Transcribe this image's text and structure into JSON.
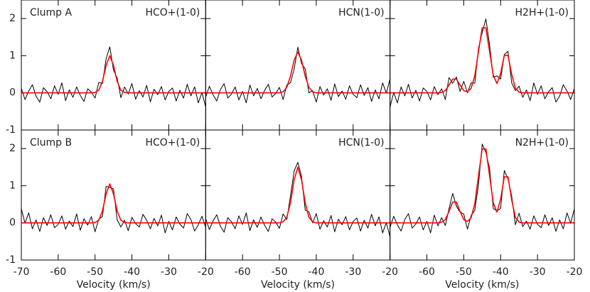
{
  "chart_data": [
    {
      "type": "line",
      "title": "Clump A",
      "title_color": "#ff3333",
      "line_label": "HCO+(1-0)",
      "x": [
        -70,
        -69,
        -68,
        -67,
        -66,
        -65,
        -64,
        -63,
        -62,
        -61,
        -60,
        -59,
        -58,
        -57,
        -56,
        -55,
        -54,
        -53,
        -52,
        -51,
        -50,
        -49,
        -48,
        -47,
        -46,
        -45,
        -44,
        -43,
        -42,
        -41,
        -40,
        -39,
        -38,
        -37,
        -36,
        -35,
        -34,
        -33,
        -32,
        -31,
        -30,
        -29,
        -28,
        -27,
        -26,
        -25,
        -24,
        -23,
        -22,
        -21,
        -20
      ],
      "series": [
        {
          "color": "#000000",
          "values": [
            0.12,
            -0.18,
            0.05,
            0.22,
            -0.09,
            -0.25,
            0.14,
            0.03,
            -0.16,
            0.19,
            -0.04,
            0.27,
            -0.21,
            0.08,
            -0.12,
            0.16,
            -0.07,
            -0.23,
            0.11,
            0.02,
            -0.14,
            0.28,
            0.25,
            0.92,
            1.24,
            0.61,
            0.4,
            -0.13,
            0.16,
            -0.03,
            0.25,
            -0.17,
            0.06,
            -0.11,
            0.2,
            -0.24,
            0.1,
            -0.05,
            0.17,
            -0.19,
            0.04,
            0.13,
            -0.22,
            0.07,
            -0.14,
            0.23,
            -0.08,
            0.16,
            -0.27,
            0.01,
            -0.38
          ]
        },
        {
          "color": "#ff0000",
          "values": [
            0,
            0,
            0,
            0,
            0,
            0,
            0,
            0,
            0,
            0,
            0,
            0,
            0,
            0,
            0,
            0,
            0,
            0,
            0,
            0,
            0.01,
            0.07,
            0.31,
            0.74,
            1.0,
            0.74,
            0.31,
            0.07,
            0.01,
            0,
            0,
            0,
            0,
            0,
            0,
            0,
            0,
            0,
            0,
            0,
            0,
            0,
            0,
            0,
            0,
            0,
            0,
            0,
            0,
            0,
            0
          ]
        }
      ],
      "xlim": [
        -70,
        -20
      ],
      "ylim": [
        -1,
        2.5
      ],
      "yticks": [
        -1,
        0,
        1,
        2
      ]
    },
    {
      "type": "line",
      "line_label": "HCN(1-0)",
      "x": [
        -70,
        -69,
        -68,
        -67,
        -66,
        -65,
        -64,
        -63,
        -62,
        -61,
        -60,
        -59,
        -58,
        -57,
        -56,
        -55,
        -54,
        -53,
        -52,
        -51,
        -50,
        -49,
        -48,
        -47,
        -46,
        -45,
        -44,
        -43,
        -42,
        -41,
        -40,
        -39,
        -38,
        -37,
        -36,
        -35,
        -34,
        -33,
        -32,
        -31,
        -30,
        -29,
        -28,
        -27,
        -26,
        -25,
        -24,
        -23,
        -22,
        -21,
        -20
      ],
      "series": [
        {
          "color": "#000000",
          "values": [
            -0.12,
            0.18,
            -0.05,
            -0.22,
            0.09,
            0.25,
            -0.14,
            -0.03,
            0.16,
            -0.19,
            0.04,
            -0.27,
            0.21,
            -0.08,
            0.12,
            -0.16,
            0.07,
            0.23,
            -0.11,
            -0.02,
            0.15,
            -0.18,
            0.21,
            0.27,
            0.64,
            1.23,
            0.79,
            0.65,
            0,
            0.06,
            -0.25,
            0.17,
            -0.06,
            0.11,
            -0.2,
            0.24,
            -0.1,
            0.05,
            -0.17,
            0.19,
            -0.04,
            -0.13,
            0.22,
            -0.07,
            0.14,
            -0.23,
            0.08,
            -0.16,
            0.27,
            -0.01,
            0.38
          ]
        },
        {
          "color": "#ff0000",
          "values": [
            0,
            0,
            0,
            0,
            0,
            0,
            0,
            0,
            0,
            0,
            0,
            0,
            0,
            0,
            0,
            0,
            0,
            0,
            0,
            0,
            0,
            0.03,
            0.15,
            0.45,
            0.88,
            1.1,
            0.88,
            0.45,
            0.15,
            0.03,
            0,
            0,
            0,
            0,
            0,
            0,
            0,
            0,
            0,
            0,
            0,
            0,
            0,
            0,
            0,
            0,
            0,
            0,
            0,
            0,
            0
          ]
        }
      ],
      "xlim": [
        -70,
        -20
      ],
      "ylim": [
        -1,
        2.5
      ]
    },
    {
      "type": "line",
      "line_label": "H2H+(1-0)",
      "x": [
        -70,
        -69,
        -68,
        -67,
        -66,
        -65,
        -64,
        -63,
        -62,
        -61,
        -60,
        -59,
        -58,
        -57,
        -56,
        -55,
        -54,
        -53,
        -52,
        -51,
        -50,
        -49,
        -48,
        -47,
        -46,
        -45,
        -44,
        -43,
        -42,
        -41,
        -40,
        -39,
        -38,
        -37,
        -36,
        -35,
        -34,
        -33,
        -32,
        -31,
        -30,
        -29,
        -28,
        -27,
        -26,
        -25,
        -24,
        -23,
        -22,
        -21,
        -20
      ],
      "series": [
        {
          "color": "#000000",
          "values": [
            -0.38,
            0.01,
            -0.27,
            0.16,
            -0.08,
            0.23,
            -0.14,
            0.07,
            -0.22,
            0.13,
            0.04,
            -0.19,
            0.17,
            -0.05,
            0.11,
            -0.18,
            0.41,
            0.26,
            0.43,
            0.04,
            0.31,
            0,
            0.27,
            0.26,
            1.21,
            1.62,
            1.99,
            1.3,
            0.42,
            0.46,
            0.37,
            1.03,
            1.12,
            0.27,
            0.06,
            0.18,
            -0.12,
            0.08,
            -0.21,
            0.27,
            -0.04,
            0.19,
            -0.16,
            0.03,
            0.14,
            -0.25,
            -0.09,
            0.22,
            0.05,
            -0.18,
            0.12
          ]
        },
        {
          "color": "#ff0000",
          "values": [
            0,
            0,
            0,
            0,
            0,
            0,
            0,
            0,
            0,
            0,
            0,
            0,
            0,
            0,
            0.01,
            0.06,
            0.21,
            0.37,
            0.37,
            0.21,
            0.06,
            0.03,
            0.12,
            0.46,
            1.12,
            1.75,
            1.75,
            1.12,
            0.48,
            0.25,
            0.52,
            1.01,
            1.01,
            0.5,
            0.13,
            0.02,
            0,
            0,
            0,
            0,
            0,
            0,
            0,
            0,
            0,
            0,
            0,
            0,
            0,
            0,
            0
          ]
        }
      ],
      "xlim": [
        -70,
        -20
      ],
      "ylim": [
        -1,
        2.5
      ]
    },
    {
      "type": "line",
      "title": "Clump B",
      "title_color": "#ff3333",
      "line_label": "HCO+(1-0)",
      "x": [
        -70,
        -69,
        -68,
        -67,
        -66,
        -65,
        -64,
        -63,
        -62,
        -61,
        -60,
        -59,
        -58,
        -57,
        -56,
        -55,
        -54,
        -53,
        -52,
        -51,
        -50,
        -49,
        -48,
        -47,
        -46,
        -45,
        -44,
        -43,
        -42,
        -41,
        -40,
        -39,
        -38,
        -37,
        -36,
        -35,
        -34,
        -33,
        -32,
        -31,
        -30,
        -29,
        -28,
        -27,
        -26,
        -25,
        -24,
        -23,
        -22,
        -21,
        -20
      ],
      "series": [
        {
          "color": "#000000",
          "values": [
            0.38,
            -0.01,
            0.27,
            -0.16,
            0.08,
            -0.23,
            0.14,
            -0.07,
            0.22,
            -0.13,
            -0.04,
            0.19,
            -0.17,
            0.05,
            -0.1,
            0.24,
            -0.2,
            0.11,
            -0.06,
            0.17,
            -0.24,
            0.1,
            0.17,
            0.98,
            0.96,
            0.91,
            0.08,
            -0.11,
            0.07,
            -0.21,
            0.15,
            -0.02,
            -0.11,
            0.23,
            0.07,
            -0.16,
            0.12,
            -0.08,
            0.21,
            -0.27,
            0.04,
            -0.19,
            0.16,
            -0.03,
            -0.14,
            0.25,
            0.09,
            -0.22,
            -0.05,
            0.18,
            -0.12
          ]
        },
        {
          "color": "#ff0000",
          "values": [
            0,
            0,
            0,
            0,
            0,
            0,
            0,
            0,
            0,
            0,
            0,
            0,
            0,
            0,
            0,
            0,
            0,
            0,
            0,
            0,
            0.01,
            0.07,
            0.32,
            0.78,
            1.05,
            0.78,
            0.32,
            0.07,
            0.01,
            0,
            0,
            0,
            0,
            0,
            0,
            0,
            0,
            0,
            0,
            0,
            0,
            0,
            0,
            0,
            0,
            0,
            0,
            0,
            0,
            0,
            0
          ]
        }
      ],
      "xlim": [
        -70,
        -20
      ],
      "ylim": [
        -1,
        2.5
      ],
      "yticks": [
        -1,
        0,
        1,
        2
      ],
      "xticks": [
        -70,
        -60,
        -50,
        -40,
        -30,
        -20
      ],
      "xlabel": "Velocity (km/s)"
    },
    {
      "type": "line",
      "line_label": "HCN(1-0)",
      "x": [
        -70,
        -69,
        -68,
        -67,
        -66,
        -65,
        -64,
        -63,
        -62,
        -61,
        -60,
        -59,
        -58,
        -57,
        -56,
        -55,
        -54,
        -53,
        -52,
        -51,
        -50,
        -49,
        -48,
        -47,
        -46,
        -45,
        -44,
        -43,
        -42,
        -41,
        -40,
        -39,
        -38,
        -37,
        -36,
        -35,
        -34,
        -33,
        -32,
        -31,
        -30,
        -29,
        -28,
        -27,
        -26,
        -25,
        -24,
        -23,
        -22,
        -21,
        -20
      ],
      "series": [
        {
          "color": "#000000",
          "values": [
            0.12,
            -0.18,
            0.05,
            0.22,
            -0.09,
            -0.25,
            0.14,
            0.03,
            -0.16,
            0.19,
            -0.04,
            0.27,
            -0.21,
            0.08,
            -0.12,
            0.16,
            -0.07,
            -0.23,
            0.11,
            0.02,
            -0.15,
            0.24,
            0.09,
            0.72,
            1.4,
            1.63,
            1.25,
            0.34,
            0.3,
            0,
            0.25,
            -0.17,
            0.06,
            -0.11,
            0.2,
            -0.24,
            0.1,
            -0.05,
            0.17,
            -0.19,
            0.04,
            0.13,
            -0.22,
            0.07,
            -0.14,
            0.23,
            -0.08,
            0.16,
            -0.27,
            0.01,
            -0.38
          ]
        },
        {
          "color": "#ff0000",
          "values": [
            0,
            0,
            0,
            0,
            0,
            0,
            0,
            0,
            0,
            0,
            0,
            0,
            0,
            0,
            0,
            0,
            0,
            0,
            0,
            0,
            0,
            0.03,
            0.15,
            0.54,
            1.16,
            1.5,
            1.16,
            0.54,
            0.15,
            0.03,
            0,
            0,
            0,
            0,
            0,
            0,
            0,
            0,
            0,
            0,
            0,
            0,
            0,
            0,
            0,
            0,
            0,
            0,
            0,
            0,
            0
          ]
        }
      ],
      "xlim": [
        -70,
        -20
      ],
      "ylim": [
        -1,
        2.5
      ],
      "xticks": [
        -60,
        -50,
        -40,
        -30,
        -20
      ],
      "xlabel": "Velocity (km/s)"
    },
    {
      "type": "line",
      "line_label": "N2H+(1-0)",
      "x": [
        -70,
        -69,
        -68,
        -67,
        -66,
        -65,
        -64,
        -63,
        -62,
        -61,
        -60,
        -59,
        -58,
        -57,
        -56,
        -55,
        -54,
        -53,
        -52,
        -51,
        -50,
        -49,
        -48,
        -47,
        -46,
        -45,
        -44,
        -43,
        -42,
        -41,
        -40,
        -39,
        -38,
        -37,
        -36,
        -35,
        -34,
        -33,
        -32,
        -31,
        -30,
        -29,
        -28,
        -27,
        -26,
        -25,
        -24,
        -23,
        -22,
        -21,
        -20
      ],
      "series": [
        {
          "color": "#000000",
          "values": [
            -0.12,
            0.18,
            -0.05,
            -0.22,
            0.09,
            0.25,
            -0.14,
            -0.03,
            0.16,
            -0.19,
            0.04,
            -0.27,
            0.21,
            -0.08,
            0.14,
            -0.07,
            0.38,
            0.79,
            0.45,
            0.29,
            0.24,
            -0.17,
            0.2,
            0.34,
            1.03,
            2.12,
            1.9,
            1.47,
            0.39,
            0.32,
            0.39,
            1.41,
            1.18,
            0.73,
            -0.05,
            0.26,
            -0.1,
            0.05,
            -0.17,
            0.19,
            -0.04,
            -0.13,
            0.22,
            -0.07,
            0.14,
            -0.23,
            0.08,
            -0.16,
            0.27,
            -0.01,
            0.38
          ]
        },
        {
          "color": "#ff0000",
          "values": [
            0,
            0,
            0,
            0,
            0,
            0,
            0,
            0,
            0,
            0,
            0,
            0,
            0,
            0,
            0.02,
            0.09,
            0.31,
            0.56,
            0.56,
            0.31,
            0.09,
            0.04,
            0.14,
            0.52,
            1.27,
            1.99,
            1.99,
            1.27,
            0.54,
            0.29,
            0.64,
            1.24,
            1.24,
            0.62,
            0.15,
            0.02,
            0,
            0,
            0,
            0,
            0,
            0,
            0,
            0,
            0,
            0,
            0,
            0,
            0,
            0,
            0
          ]
        }
      ],
      "xlim": [
        -70,
        -20
      ],
      "ylim": [
        -1,
        2.5
      ],
      "xticks": [
        -60,
        -50,
        -40,
        -30,
        -20
      ],
      "xlabel": "Velocity (km/s)"
    }
  ]
}
